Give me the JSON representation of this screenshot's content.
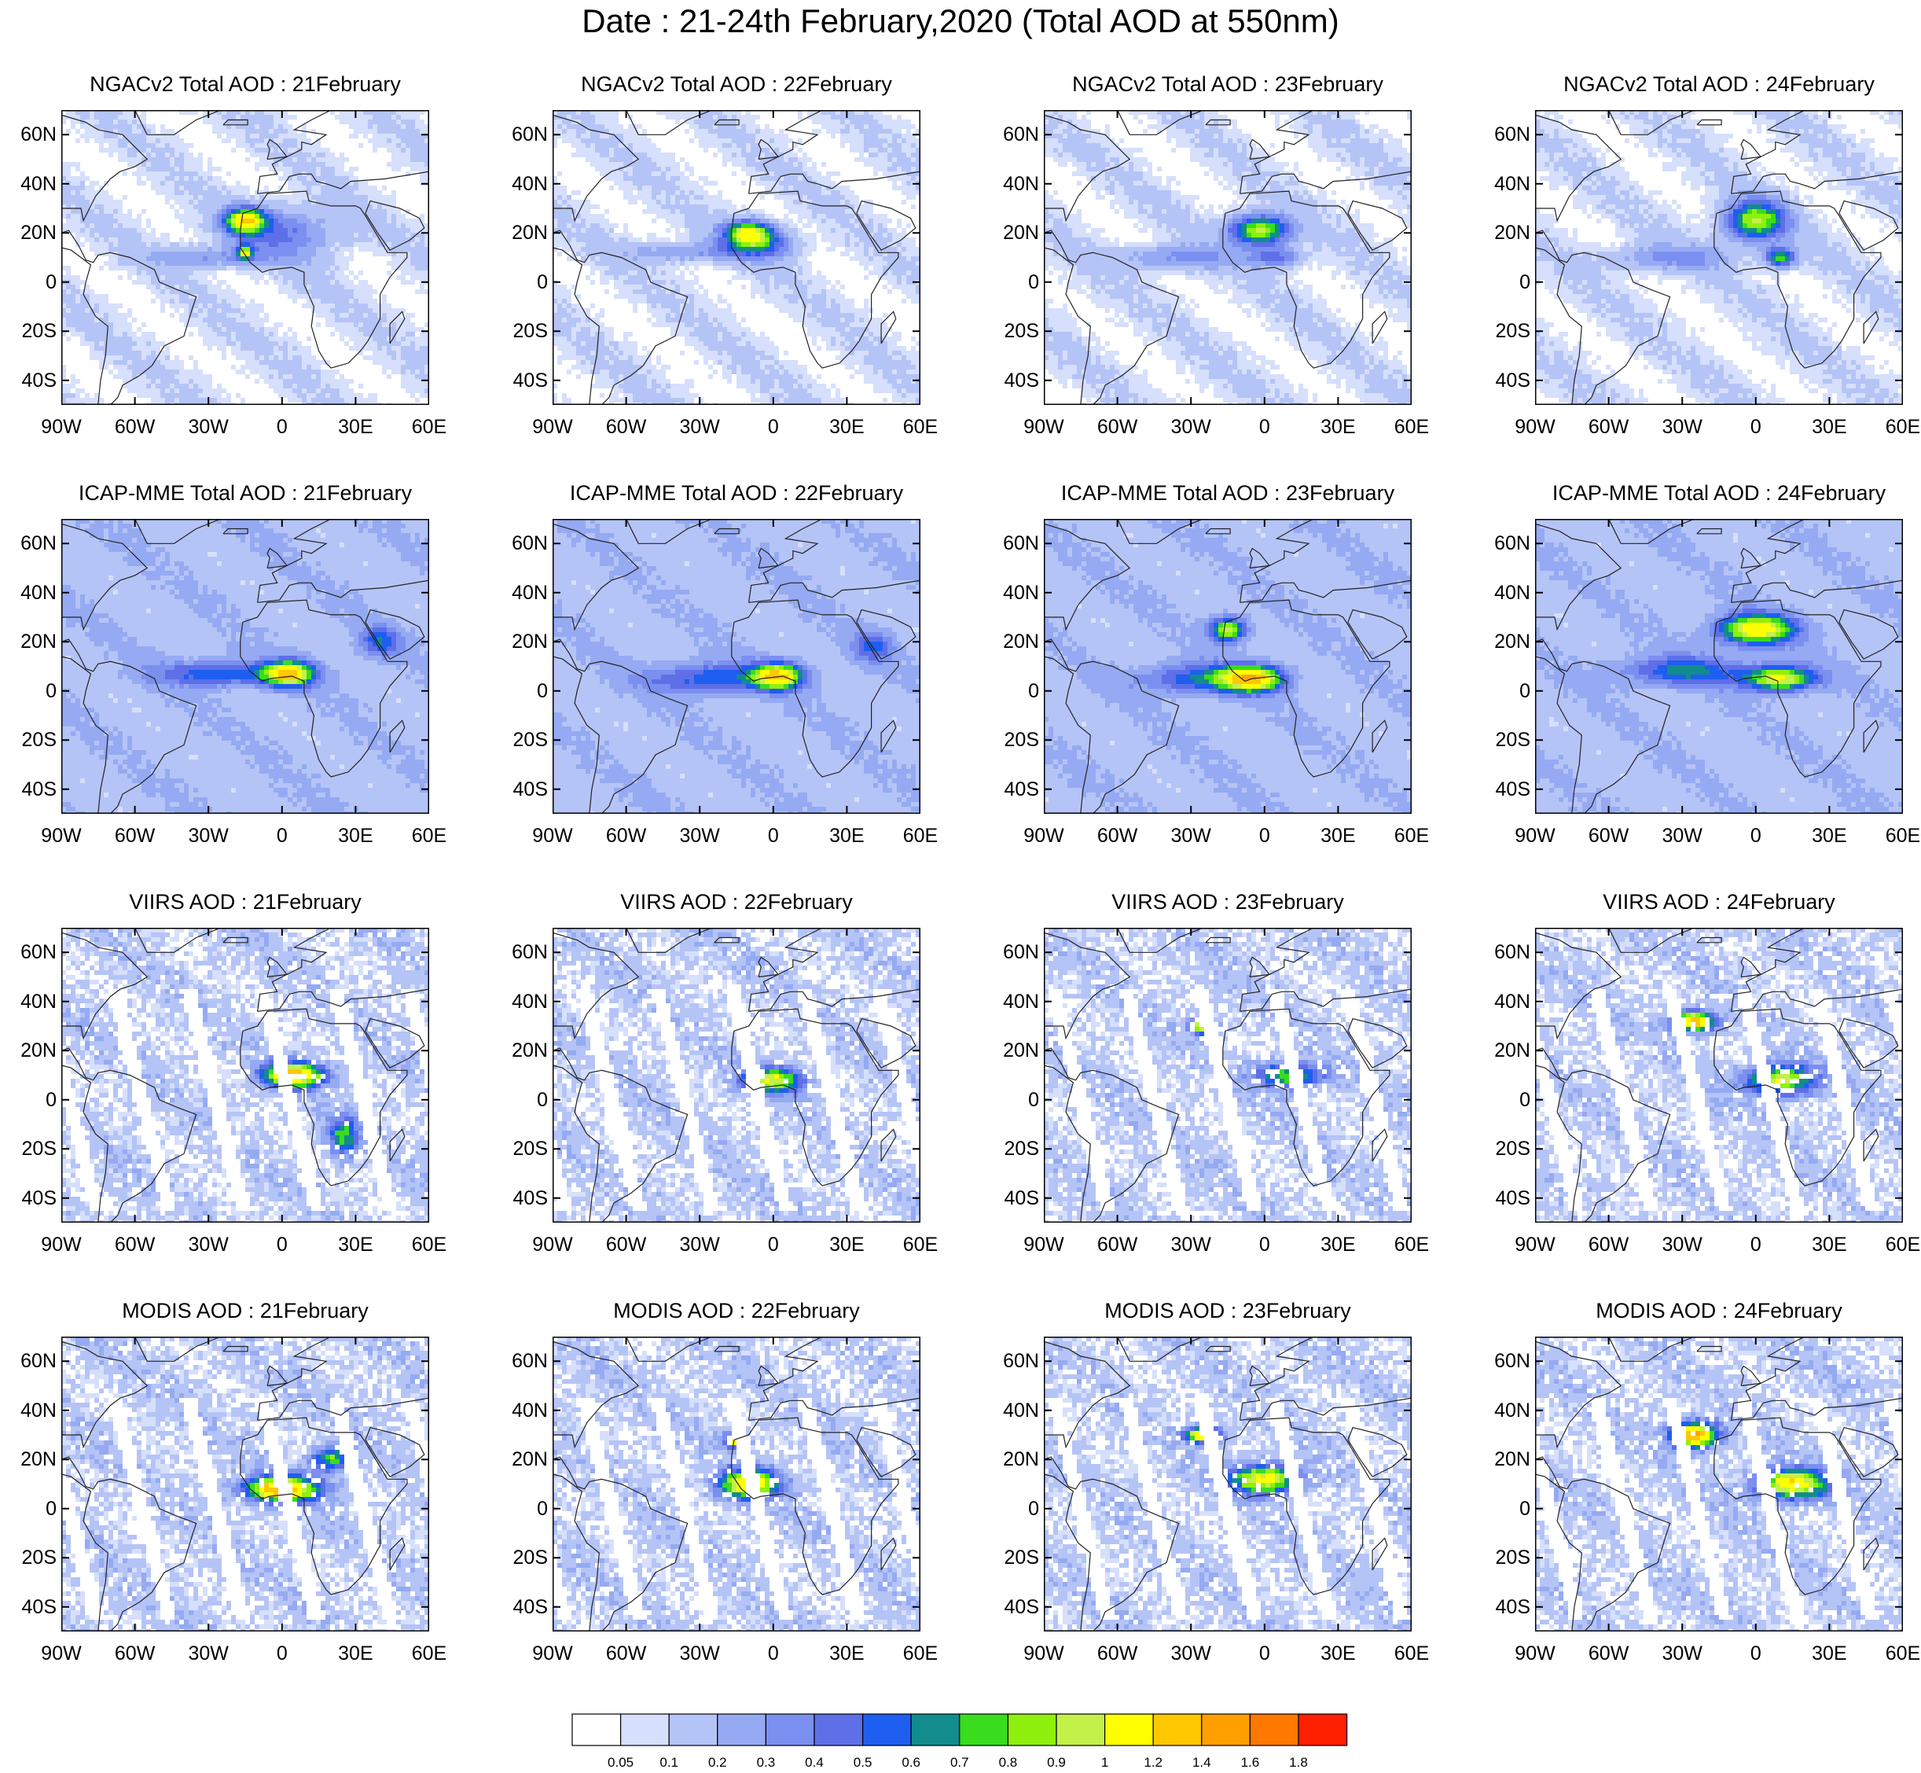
{
  "title": "Date : 21-24th February,2020 (Total AOD at 550nm)",
  "panels": [
    {
      "title": "NGACv2 Total AOD : 21February",
      "model": "ngac",
      "day": 0
    },
    {
      "title": "NGACv2 Total AOD : 22February",
      "model": "ngac",
      "day": 1
    },
    {
      "title": "NGACv2 Total AOD : 23February",
      "model": "ngac",
      "day": 2
    },
    {
      "title": "NGACv2 Total AOD : 24February",
      "model": "ngac",
      "day": 3
    },
    {
      "title": "ICAP-MME Total AOD : 21February",
      "model": "icap",
      "day": 0
    },
    {
      "title": "ICAP-MME Total AOD : 22February",
      "model": "icap",
      "day": 1
    },
    {
      "title": "ICAP-MME Total AOD : 23February",
      "model": "icap",
      "day": 2
    },
    {
      "title": "ICAP-MME Total AOD : 24February",
      "model": "icap",
      "day": 3
    },
    {
      "title": "VIIRS AOD : 21February",
      "model": "viirs",
      "day": 0
    },
    {
      "title": "VIIRS AOD : 22February",
      "model": "viirs",
      "day": 1
    },
    {
      "title": "VIIRS AOD : 23February",
      "model": "viirs",
      "day": 2
    },
    {
      "title": "VIIRS AOD : 24February",
      "model": "viirs",
      "day": 3
    },
    {
      "title": "MODIS AOD : 21February",
      "model": "modis",
      "day": 0
    },
    {
      "title": "MODIS AOD : 22February",
      "model": "modis",
      "day": 1
    },
    {
      "title": "MODIS AOD : 23February",
      "model": "modis",
      "day": 2
    },
    {
      "title": "MODIS AOD : 24February",
      "model": "modis",
      "day": 3
    }
  ],
  "axes": {
    "lat_labels": [
      "60N",
      "40N",
      "20N",
      "0",
      "20S",
      "40S"
    ],
    "lat_values": [
      60,
      40,
      20,
      0,
      -20,
      -40
    ],
    "lon_labels": [
      "90W",
      "60W",
      "30W",
      "0",
      "30E",
      "60E"
    ],
    "lon_values": [
      -90,
      -60,
      -30,
      0,
      30,
      60
    ],
    "lat_range": [
      -50,
      70
    ],
    "lon_range": [
      -90,
      60
    ]
  },
  "colorbar": {
    "labels": [
      "0.05",
      "0.1",
      "0.2",
      "0.3",
      "0.4",
      "0.5",
      "0.6",
      "0.7",
      "0.8",
      "0.9",
      "1",
      "1.2",
      "1.4",
      "1.6",
      "1.8"
    ],
    "colors": [
      "#ffffff",
      "#d6dffb",
      "#b5c4f6",
      "#95aaf2",
      "#7b8ff0",
      "#5e6fe8",
      "#1e5ef0",
      "#128c8c",
      "#3adc1e",
      "#8ff00e",
      "#c4f04a",
      "#ffff00",
      "#ffc800",
      "#ffa000",
      "#ff7800",
      "#ff2000"
    ]
  }
}
